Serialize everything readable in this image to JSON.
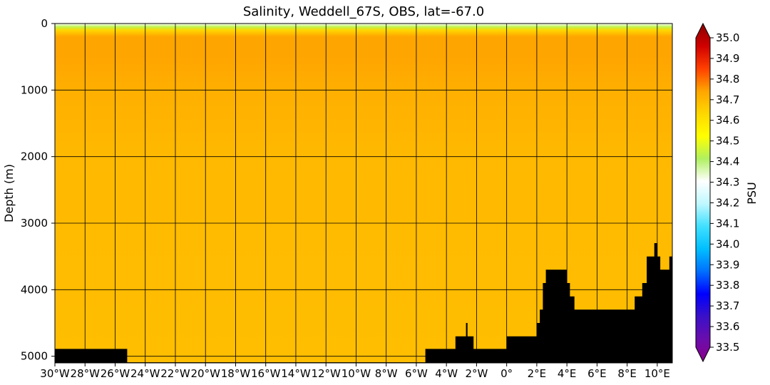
{
  "chart_data": {
    "type": "heatmap",
    "title": "Salinity, Weddell_67S, OBS, lat=-67.0",
    "ylabel": "Depth (m)",
    "xlabel": "",
    "x_range": [
      -30,
      11
    ],
    "y_range": [
      0,
      5100
    ],
    "y_inverted": true,
    "x_ticks": [
      {
        "v": -30,
        "label": "30°W"
      },
      {
        "v": -28,
        "label": "28°W"
      },
      {
        "v": -26,
        "label": "26°W"
      },
      {
        "v": -24,
        "label": "24°W"
      },
      {
        "v": -22,
        "label": "22°W"
      },
      {
        "v": -20,
        "label": "20°W"
      },
      {
        "v": -18,
        "label": "18°W"
      },
      {
        "v": -16,
        "label": "16°W"
      },
      {
        "v": -14,
        "label": "14°W"
      },
      {
        "v": -12,
        "label": "12°W"
      },
      {
        "v": -10,
        "label": "10°W"
      },
      {
        "v": -8,
        "label": "8°W"
      },
      {
        "v": -6,
        "label": "6°W"
      },
      {
        "v": -4,
        "label": "4°W"
      },
      {
        "v": -2,
        "label": "2°W"
      },
      {
        "v": 0,
        "label": "0°"
      },
      {
        "v": 2,
        "label": "2°E"
      },
      {
        "v": 4,
        "label": "4°E"
      },
      {
        "v": 6,
        "label": "6°E"
      },
      {
        "v": 8,
        "label": "8°E"
      },
      {
        "v": 10,
        "label": "10°E"
      }
    ],
    "y_ticks": [
      {
        "v": 0,
        "label": "0"
      },
      {
        "v": 1000,
        "label": "1000"
      },
      {
        "v": 2000,
        "label": "2000"
      },
      {
        "v": 3000,
        "label": "3000"
      },
      {
        "v": 4000,
        "label": "4000"
      },
      {
        "v": 5000,
        "label": "5000"
      }
    ],
    "grid": true,
    "salinity_profile": [
      {
        "depth": 0,
        "psu": 34.3
      },
      {
        "depth": 50,
        "psu": 34.42
      },
      {
        "depth": 100,
        "psu": 34.6
      },
      {
        "depth": 200,
        "psu": 34.7
      },
      {
        "depth": 500,
        "psu": 34.7
      },
      {
        "depth": 1000,
        "psu": 34.68
      },
      {
        "depth": 2000,
        "psu": 34.66
      },
      {
        "depth": 5100,
        "psu": 34.65
      }
    ],
    "bathymetry": [
      [
        -30,
        4890
      ],
      [
        -25.2,
        4890
      ],
      [
        -25.2,
        5090
      ],
      [
        -5.4,
        5090
      ],
      [
        -5.4,
        4890
      ],
      [
        -3.4,
        4890
      ],
      [
        -3.4,
        4700
      ],
      [
        -2.7,
        4700
      ],
      [
        -2.7,
        4500
      ],
      [
        -2.6,
        4500
      ],
      [
        -2.6,
        4700
      ],
      [
        -2.2,
        4700
      ],
      [
        -2.2,
        4890
      ],
      [
        0,
        4890
      ],
      [
        0,
        4700
      ],
      [
        2,
        4700
      ],
      [
        2,
        4500
      ],
      [
        2.2,
        4500
      ],
      [
        2.2,
        4300
      ],
      [
        2.4,
        4300
      ],
      [
        2.4,
        3900
      ],
      [
        2.6,
        3900
      ],
      [
        2.6,
        3700
      ],
      [
        4,
        3700
      ],
      [
        4,
        3900
      ],
      [
        4.2,
        3900
      ],
      [
        4.2,
        4100
      ],
      [
        4.5,
        4100
      ],
      [
        4.5,
        4300
      ],
      [
        8.5,
        4300
      ],
      [
        8.5,
        4100
      ],
      [
        9,
        4100
      ],
      [
        9,
        3900
      ],
      [
        9.3,
        3900
      ],
      [
        9.3,
        3500
      ],
      [
        9.8,
        3500
      ],
      [
        9.8,
        3300
      ],
      [
        10,
        3300
      ],
      [
        10,
        3500
      ],
      [
        10.2,
        3500
      ],
      [
        10.2,
        3700
      ],
      [
        10.8,
        3700
      ],
      [
        10.8,
        3500
      ],
      [
        11,
        3500
      ],
      [
        11,
        5100
      ],
      [
        -30,
        5100
      ]
    ],
    "colorbar": {
      "label": "PSU",
      "min": 33.5,
      "max": 35.0,
      "ticks": [
        "33.5",
        "33.6",
        "33.7",
        "33.8",
        "33.9",
        "34.0",
        "34.1",
        "34.2",
        "34.3",
        "34.4",
        "34.5",
        "34.6",
        "34.7",
        "34.8",
        "34.9",
        "35.0"
      ],
      "colors": [
        "#8b008b",
        "#6a0dad",
        "#3a10c8",
        "#0000ff",
        "#0070ff",
        "#00bfff",
        "#40e0ff",
        "#c0f8ff",
        "#ffffff",
        "#b0f060",
        "#ffff00",
        "#ffd700",
        "#ffa500",
        "#ff4000",
        "#d00000",
        "#8b0000"
      ]
    }
  }
}
